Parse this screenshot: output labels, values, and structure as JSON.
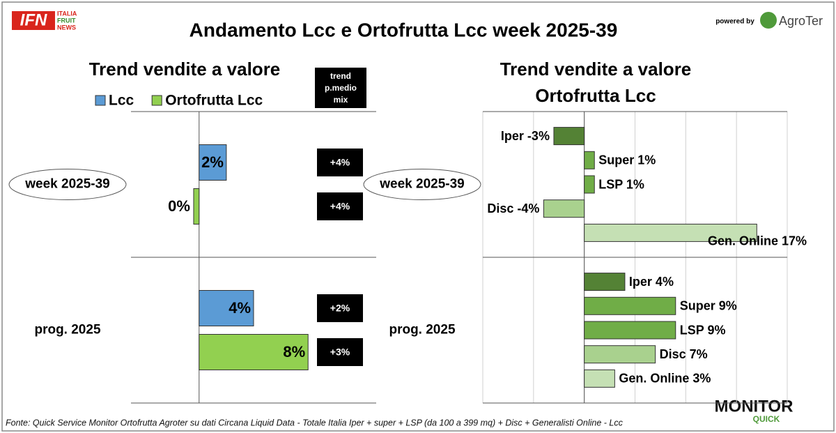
{
  "title": "Andamento Lcc e Ortofrutta Lcc week 2025-39",
  "logo": {
    "ifn": "IFN",
    "ifn_sub": [
      "ITALIA",
      "FRUIT",
      "NEWS"
    ],
    "powered_by": "powered by",
    "agroter": "AgroTer",
    "monitor": "MONITOR",
    "quick": "QUICK"
  },
  "source": "Fonte: Quick Service Monitor Ortofrutta Agroter su dati Circana Liquid Data - Totale Italia Iper + super + LSP (da 100 a 399 mq) + Disc + Generalisti Online - Lcc",
  "chart_data": [
    {
      "type": "bar",
      "orientation": "horizontal",
      "title": "Trend vendite a valore",
      "categories": [
        "week 2025-39",
        "prog. 2025"
      ],
      "mix_header": [
        "trend",
        "p.medio",
        "mix"
      ],
      "series": [
        {
          "name": "Lcc",
          "color": "#5b9bd5",
          "values": [
            2,
            4
          ],
          "value_labels": [
            "2%",
            "4%"
          ],
          "mix_values": [
            4,
            2
          ],
          "mix_labels": [
            "+4%",
            "+2%"
          ]
        },
        {
          "name": "Ortofrutta Lcc",
          "color": "#92d050",
          "values": [
            -0.4,
            8
          ],
          "value_labels": [
            "0%",
            "8%"
          ],
          "mix_values": [
            4,
            3
          ],
          "mix_labels": [
            "+4%",
            "+3%"
          ]
        }
      ],
      "xlim": [
        -5,
        13
      ],
      "legend": "top"
    },
    {
      "type": "bar",
      "orientation": "horizontal",
      "title": "Trend vendite a valore",
      "subtitle": "Ortofrutta Lcc",
      "categories": [
        "week 2025-39",
        "prog. 2025"
      ],
      "series": [
        {
          "color": "#548235",
          "values": [
            -3,
            4
          ],
          "value_labels": [
            "Iper -3%",
            "Iper 4%"
          ]
        },
        {
          "color": "#70ad47",
          "values": [
            1,
            9
          ],
          "value_labels": [
            "Super 1%",
            "Super 9%"
          ]
        },
        {
          "color": "#70ad47",
          "values": [
            1,
            9
          ],
          "value_labels": [
            "LSP 1%",
            "LSP 9%"
          ]
        },
        {
          "color": "#a9d18e",
          "values": [
            -4,
            7
          ],
          "value_labels": [
            "Disc -4%",
            "Disc 7%"
          ]
        },
        {
          "color": "#c5e0b4",
          "values": [
            17,
            3
          ],
          "value_labels": [
            "Gen. Online 17%",
            "Gen. Online 3%"
          ]
        }
      ],
      "xlim": [
        -10,
        20
      ],
      "xticks": [
        -10,
        -5,
        0,
        5,
        10,
        15,
        20
      ],
      "grid": true
    }
  ]
}
